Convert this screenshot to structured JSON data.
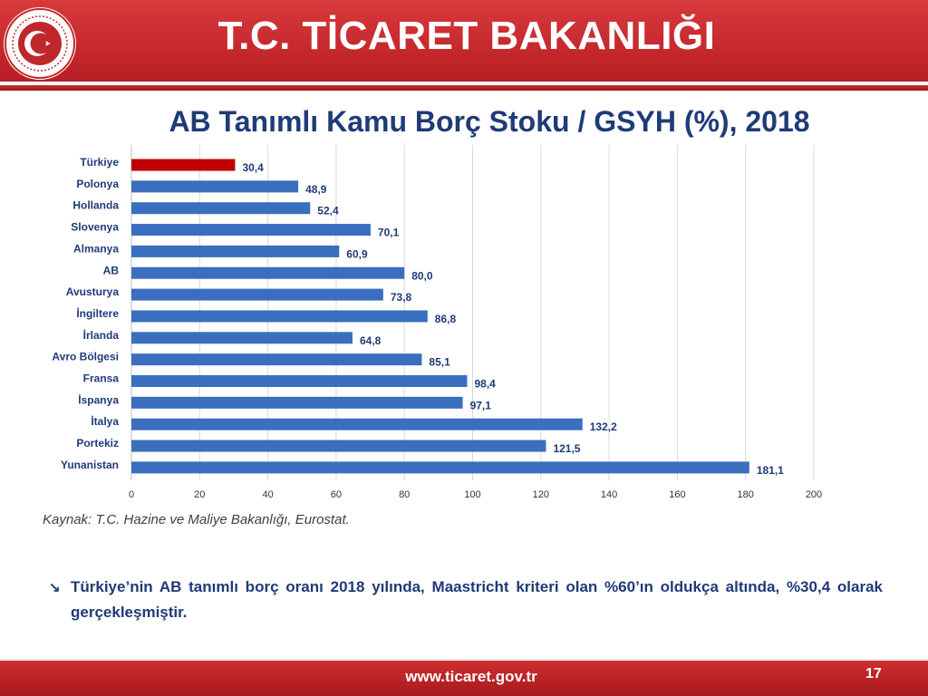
{
  "header": {
    "title": "T.C. TİCARET BAKANLIĞI"
  },
  "chart_title": "AB Tanımlı Kamu Borç Stoku / GSYH (%), 2018",
  "chart_data": {
    "type": "bar",
    "orientation": "horizontal",
    "title": "AB Tanımlı Kamu Borç Stoku / GSYH (%), 2018",
    "categories": [
      "Türkiye",
      "Polonya",
      "Hollanda",
      "Slovenya",
      "Almanya",
      "AB",
      "Avusturya",
      "İngiltere",
      "İrlanda",
      "Avro Bölgesi",
      "Fransa",
      "İspanya",
      "İtalya",
      "Portekiz",
      "Yunanistan"
    ],
    "values": [
      30.4,
      48.9,
      52.4,
      70.1,
      60.9,
      80.0,
      73.8,
      86.8,
      64.8,
      85.1,
      98.4,
      97.1,
      132.2,
      121.5,
      181.1
    ],
    "value_labels": [
      "30,4",
      "48,9",
      "52,4",
      "70,1",
      "60,9",
      "80,0",
      "73,8",
      "86,8",
      "64,8",
      "85,1",
      "98,4",
      "97,1",
      "132,2",
      "121,5",
      "181,1"
    ],
    "xlim": [
      0,
      200
    ],
    "xticks": [
      "0",
      "20",
      "40",
      "60",
      "80",
      "100",
      "120",
      "140",
      "160",
      "180",
      "200"
    ],
    "grid": true,
    "bar_color": "#3a6fbf",
    "highlight_color": "#c00000",
    "highlight_index": 0
  },
  "source": "Kaynak: T.C. Hazine ve Maliye Bakanlığı, Eurostat.",
  "bullet": {
    "icon": "arrow-down-right-icon",
    "text": "Türkiye’nin AB tanımlı borç oranı 2018 yılında, Maastricht kriteri olan %60’ın oldukça altında, %30,4 olarak gerçekleşmiştir."
  },
  "footer": {
    "url": "www.ticaret.gov.tr",
    "page": "17"
  }
}
